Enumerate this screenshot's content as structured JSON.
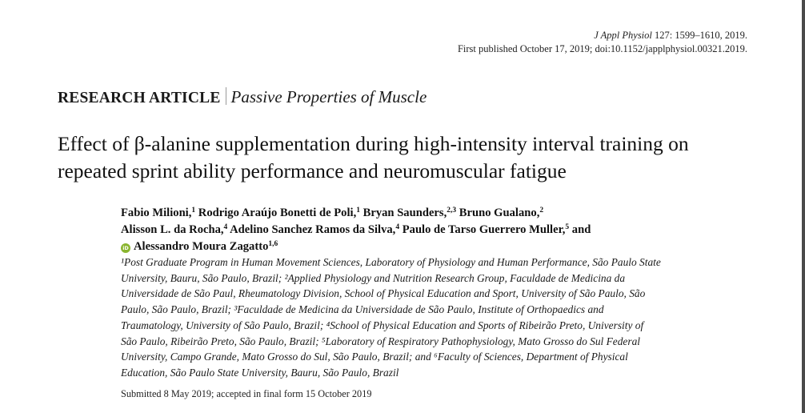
{
  "journal": {
    "name": "J Appl Physiol",
    "citation": "127: 1599–1610, 2019.",
    "published_line": "First published October 17, 2019; doi:10.1152/japplphysiol.00321.2019."
  },
  "article_type": {
    "kind": "RESEARCH ARTICLE",
    "section": "Passive Properties of Muscle"
  },
  "title_lines": [
    "Effect of β-alanine supplementation during high-intensity interval training on",
    "repeated sprint ability performance and neuromuscular fatigue"
  ],
  "authors": [
    {
      "name": "Fabio Milioni,",
      "sup": "1"
    },
    {
      "name": "Rodrigo Araújo Bonetti de Poli,",
      "sup": "1"
    },
    {
      "name": "Bryan Saunders,",
      "sup": "2,3"
    },
    {
      "name": "Bruno Gualano,",
      "sup": "2"
    },
    {
      "name": "Alisson L. da Rocha,",
      "sup": "4"
    },
    {
      "name": "Adelino Sanchez Ramos da Silva,",
      "sup": "4"
    },
    {
      "name": "Paulo de Tarso Guerrero Muller,",
      "sup": "5"
    },
    {
      "name": "and",
      "sup": ""
    },
    {
      "name": "Alessandro Moura Zagatto",
      "sup": "1,6"
    }
  ],
  "orcid_label": "iD",
  "affiliation_lines": [
    "¹Post Graduate Program in Human Movement Sciences, Laboratory of Physiology and Human Performance, São Paulo State",
    "University, Bauru, São Paulo, Brazil; ²Applied Physiology and Nutrition Research Group, Faculdade de Medicina da",
    "Universidade de São Paul, Rheumatology Division, School of Physical Education and Sport, University of São Paulo, São",
    "Paulo, São Paulo, Brazil; ³Faculdade de Medicina da Universidade de São Paulo, Institute of Orthopaedics and",
    "Traumatology, University of São Paulo, Brazil; ⁴School of Physical Education and Sports of Ribeirão Preto, University of",
    "São Paulo, Ribeirão Preto, São Paulo, Brazil; ⁵Laboratory of Respiratory Pathophysiology, Mato Grosso do Sul Federal",
    "University, Campo Grande, Mato Grosso do Sul, São Paulo, Brazil; and ⁶Faculty of Sciences, Department of Physical",
    "Education, São Paulo State University, Bauru, São Paulo, Brazil"
  ],
  "submitted": "Submitted 8 May 2019; accepted in final form 15 October 2019"
}
